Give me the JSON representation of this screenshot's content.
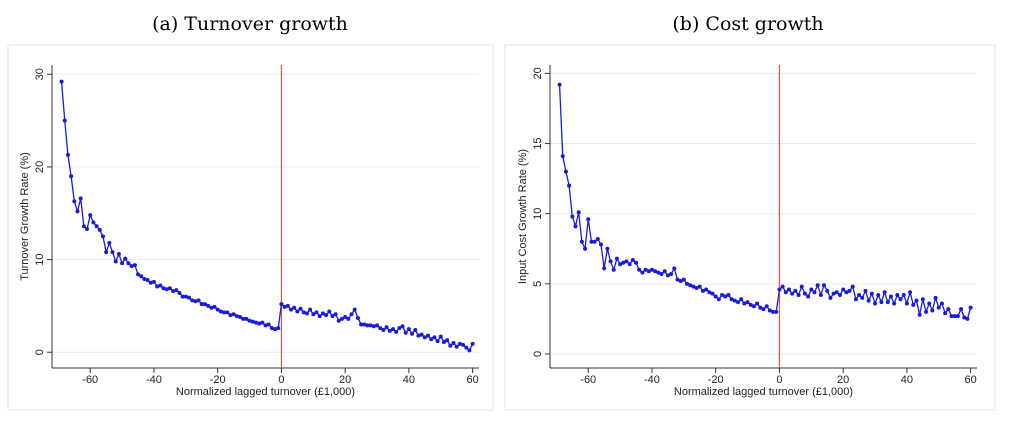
{
  "chart_data": [
    {
      "type": "line",
      "title": "(a) Turnover growth",
      "x_label": "Normalized lagged turnover (£1,000)",
      "y_label": "Turnover Growth Rate (%)",
      "xlim": [
        -72,
        62
      ],
      "ylim": [
        -1.7,
        31
      ],
      "xticks": [
        -60,
        -40,
        -20,
        0,
        20,
        40,
        60
      ],
      "yticks": [
        0,
        10,
        20,
        30
      ],
      "grid": true,
      "vline": 0,
      "vline_color": "#e05050",
      "x": [
        -69,
        -68,
        -67,
        -66,
        -65,
        -64,
        -63,
        -62,
        -61,
        -60,
        -59,
        -58,
        -57,
        -56,
        -55,
        -54,
        -53,
        -52,
        -51,
        -50,
        -49,
        -48,
        -47,
        -46,
        -45,
        -44,
        -43,
        -42,
        -41,
        -40,
        -39,
        -38,
        -37,
        -36,
        -35,
        -34,
        -33,
        -32,
        -31,
        -30,
        -29,
        -28,
        -27,
        -26,
        -25,
        -24,
        -23,
        -22,
        -21,
        -20,
        -19,
        -18,
        -17,
        -16,
        -15,
        -14,
        -13,
        -12,
        -11,
        -10,
        -9,
        -8,
        -7,
        -6,
        -5,
        -4,
        -3,
        -2,
        -1,
        0,
        1,
        2,
        3,
        4,
        5,
        6,
        7,
        8,
        9,
        10,
        11,
        12,
        13,
        14,
        15,
        16,
        17,
        18,
        19,
        20,
        21,
        22,
        23,
        24,
        25,
        26,
        27,
        28,
        29,
        30,
        31,
        32,
        33,
        34,
        35,
        36,
        37,
        38,
        39,
        40,
        41,
        42,
        43,
        44,
        45,
        46,
        47,
        48,
        49,
        50,
        51,
        52,
        53,
        54,
        55,
        56,
        57,
        58,
        59,
        60
      ],
      "series": [
        {
          "name": "Turnover growth",
          "color": "#1a1adb",
          "values": [
            29.2,
            25,
            21.3,
            19,
            16.3,
            15.2,
            16.6,
            13.6,
            13.3,
            14.8,
            14,
            13.6,
            13.2,
            12.5,
            10.8,
            11.8,
            10.8,
            9.8,
            10.6,
            9.6,
            10.1,
            9.6,
            9.3,
            9.4,
            8.4,
            8.2,
            7.9,
            7.8,
            7.5,
            7.6,
            7.1,
            7.2,
            6.9,
            6.8,
            6.9,
            6.6,
            6.7,
            6.4,
            6.0,
            6.0,
            5.9,
            5.6,
            5.5,
            5.6,
            5.2,
            5.2,
            5.0,
            4.8,
            4.9,
            4.6,
            4.4,
            4.3,
            4.3,
            4.0,
            4.1,
            3.9,
            3.8,
            3.6,
            3.6,
            3.4,
            3.3,
            3.2,
            3.1,
            3.2,
            2.9,
            3.0,
            2.6,
            2.5,
            2.6,
            5.2,
            4.9,
            5.0,
            4.6,
            4.8,
            4.4,
            4.7,
            4.3,
            4.2,
            4.6,
            4.1,
            4.3,
            3.9,
            4.2,
            4.0,
            4.4,
            3.9,
            4.1,
            3.4,
            3.6,
            3.8,
            3.6,
            4.1,
            4.6,
            3.7,
            3.0,
            3.0,
            2.9,
            2.9,
            2.8,
            2.9,
            2.6,
            2.4,
            2.7,
            2.3,
            2.5,
            2.2,
            2.6,
            2.8,
            2.1,
            2.5,
            2.0,
            2.4,
            1.8,
            1.9,
            1.6,
            1.8,
            1.4,
            1.6,
            1.2,
            1.7,
            1.1,
            1.3,
            0.7,
            1.0,
            0.6,
            0.9,
            0.8,
            0.5,
            0.2,
            0.9
          ]
        }
      ]
    },
    {
      "type": "line",
      "title": "(b) Cost growth",
      "x_label": "Normalized lagged turnover (£1,000)",
      "y_label": "Input Cost Growth Rate (%)",
      "xlim": [
        -72,
        62
      ],
      "ylim": [
        -1,
        20.6
      ],
      "xticks": [
        -60,
        -40,
        -20,
        0,
        20,
        40,
        60
      ],
      "yticks": [
        0,
        5,
        10,
        15,
        20
      ],
      "grid": true,
      "vline": 0,
      "vline_color": "#e05050",
      "x": [
        -69,
        -68,
        -67,
        -66,
        -65,
        -64,
        -63,
        -62,
        -61,
        -60,
        -59,
        -58,
        -57,
        -56,
        -55,
        -54,
        -53,
        -52,
        -51,
        -50,
        -49,
        -48,
        -47,
        -46,
        -45,
        -44,
        -43,
        -42,
        -41,
        -40,
        -39,
        -38,
        -37,
        -36,
        -35,
        -34,
        -33,
        -32,
        -31,
        -30,
        -29,
        -28,
        -27,
        -26,
        -25,
        -24,
        -23,
        -22,
        -21,
        -20,
        -19,
        -18,
        -17,
        -16,
        -15,
        -14,
        -13,
        -12,
        -11,
        -10,
        -9,
        -8,
        -7,
        -6,
        -5,
        -4,
        -3,
        -2,
        -1,
        0,
        1,
        2,
        3,
        4,
        5,
        6,
        7,
        8,
        9,
        10,
        11,
        12,
        13,
        14,
        15,
        16,
        17,
        18,
        19,
        20,
        21,
        22,
        23,
        24,
        25,
        26,
        27,
        28,
        29,
        30,
        31,
        32,
        33,
        34,
        35,
        36,
        37,
        38,
        39,
        40,
        41,
        42,
        43,
        44,
        45,
        46,
        47,
        48,
        49,
        50,
        51,
        52,
        53,
        54,
        55,
        56,
        57,
        58,
        59,
        60
      ],
      "series": [
        {
          "name": "Cost growth",
          "color": "#1a1adb",
          "values": [
            19.2,
            14.1,
            13,
            12,
            9.8,
            9.1,
            10.1,
            8,
            7.5,
            9.6,
            8,
            8,
            8.2,
            7.8,
            6.1,
            7.5,
            6.6,
            6.0,
            6.8,
            6.4,
            6.5,
            6.6,
            6.4,
            6.7,
            6.5,
            6.0,
            5.8,
            6.0,
            5.9,
            6.0,
            5.9,
            5.8,
            5.7,
            5.9,
            5.6,
            5.7,
            6.1,
            5.3,
            5.2,
            5.3,
            5.0,
            4.9,
            4.8,
            4.7,
            4.8,
            4.5,
            4.6,
            4.4,
            4.3,
            4.1,
            3.9,
            4.2,
            4.1,
            4.2,
            3.9,
            3.8,
            3.7,
            3.9,
            3.6,
            3.7,
            3.5,
            3.4,
            3.6,
            3.3,
            3.2,
            3.4,
            3.1,
            3.0,
            3.0,
            4.6,
            4.8,
            4.4,
            4.6,
            4.3,
            4.5,
            4.2,
            4.8,
            4.3,
            4.1,
            4.6,
            4.4,
            4.9,
            4.2,
            4.9,
            4.5,
            4.0,
            4.3,
            4.4,
            4.2,
            4.6,
            4.4,
            4.5,
            4.8,
            3.9,
            4.2,
            4.0,
            4.5,
            3.8,
            4.3,
            3.6,
            4.2,
            3.7,
            4.4,
            3.7,
            4.1,
            3.6,
            4.2,
            3.9,
            4.2,
            3.6,
            4.4,
            3.5,
            3.8,
            2.8,
            3.9,
            3.0,
            3.6,
            3.1,
            4.0,
            3.3,
            3.6,
            2.9,
            3.2,
            2.7,
            2.7,
            2.7,
            3.2,
            2.6,
            2.5,
            3.3
          ]
        }
      ]
    }
  ]
}
